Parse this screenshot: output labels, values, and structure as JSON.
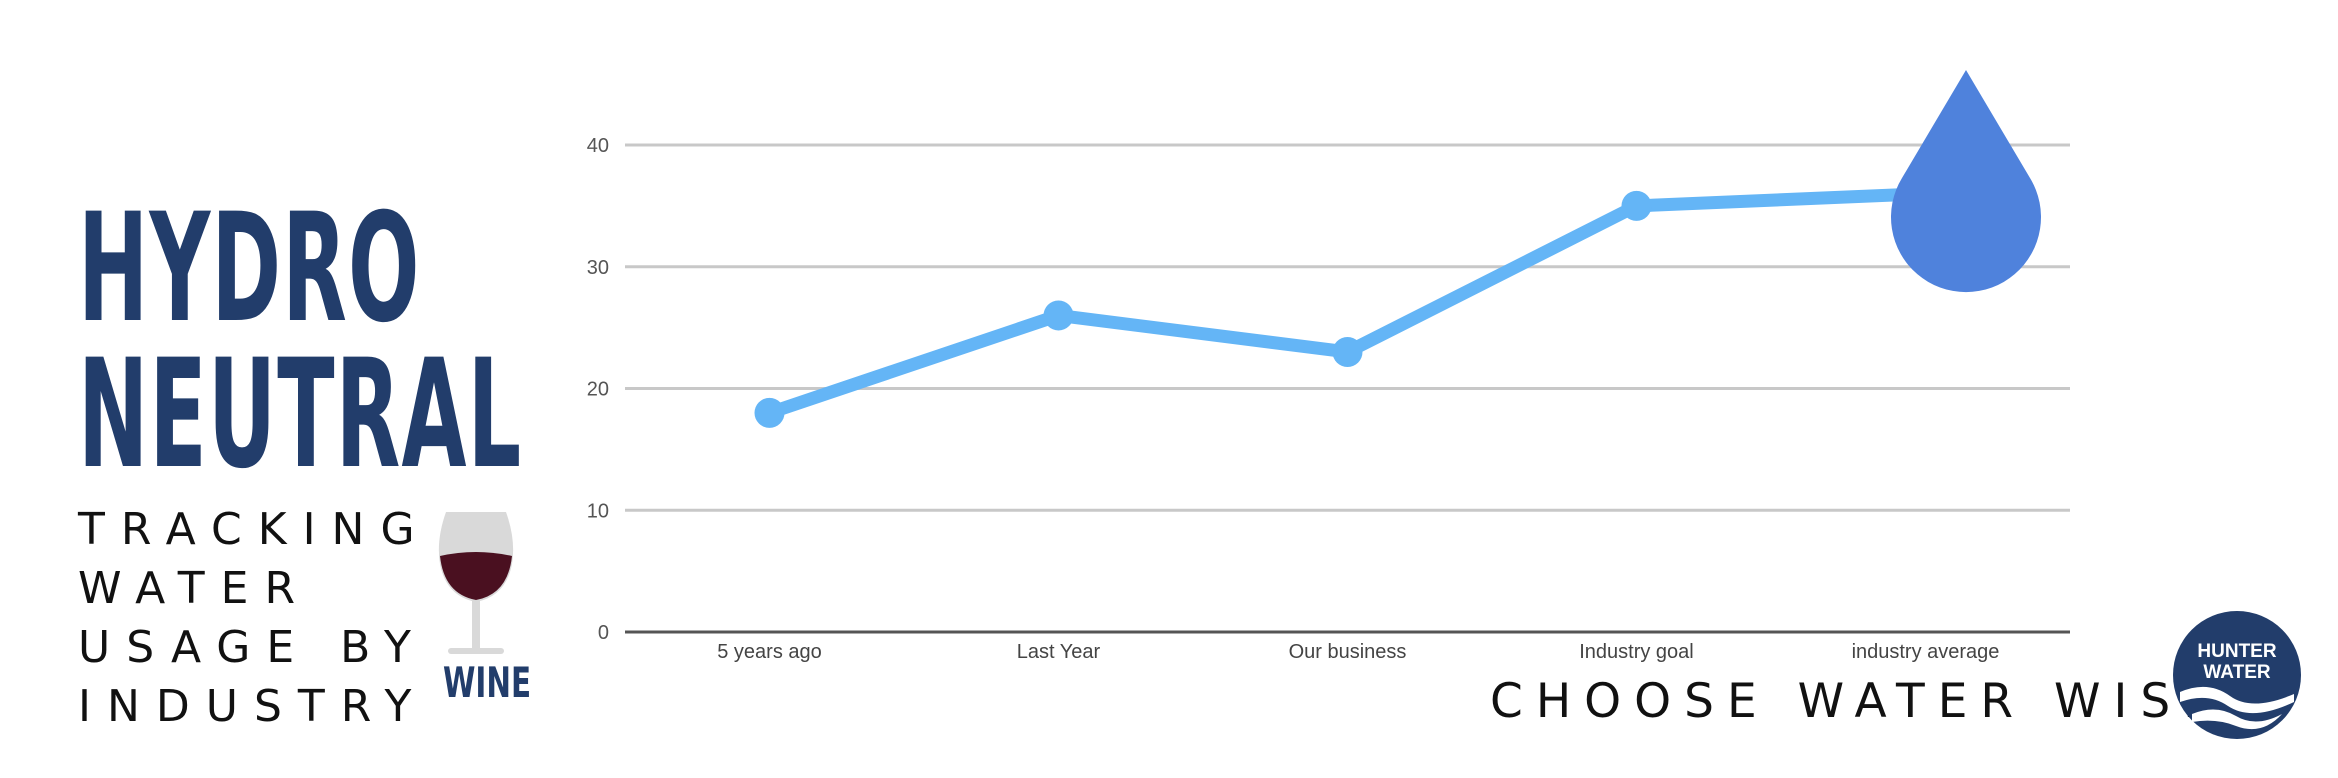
{
  "branding": {
    "title_line1": "HYDRO",
    "title_line2": "NEUTRAL",
    "subtitle_lines": [
      "TRACKING",
      "WATER",
      "USAGE BY",
      "INDUSTRY"
    ],
    "product_label": "WINE",
    "tagline": "CHOOSE WATER WISE",
    "logo_line1": "HUNTER",
    "logo_line2": "WATER",
    "colors": {
      "navy": "#223d6b",
      "line": "#64b5f6",
      "drop": "#4f82dc",
      "grid": "#c8c8c8"
    },
    "icons": [
      "wine-glass-icon",
      "water-drop-icon",
      "hunter-water-logo"
    ]
  },
  "chart_data": {
    "type": "line",
    "categories": [
      "5 years ago",
      "Last Year",
      "Our business",
      "Industry goal",
      "industry average"
    ],
    "series": [
      {
        "values": [
          18,
          26,
          23,
          35,
          36
        ]
      }
    ],
    "yticks": [
      "0",
      "10",
      "20",
      "30",
      "40"
    ],
    "ylim": [
      0,
      40
    ],
    "grid": true,
    "xlabel": "",
    "ylabel": "",
    "title": ""
  }
}
